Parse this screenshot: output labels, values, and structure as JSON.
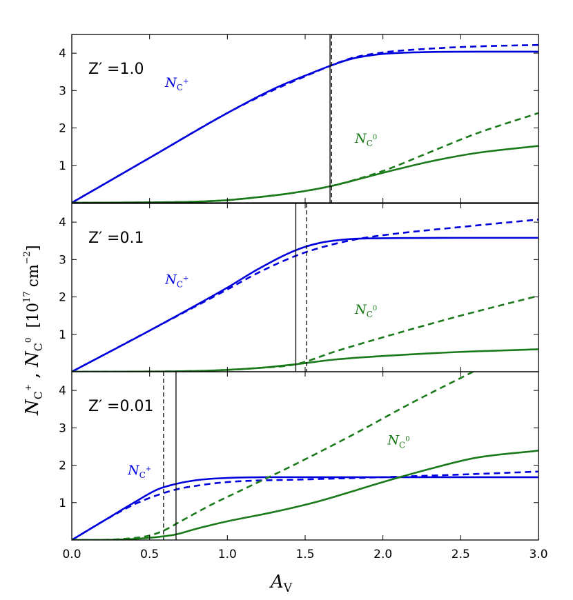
{
  "chart_data": {
    "type": "line",
    "xlabel": "A",
    "xlabel_sub": "V",
    "ylabel": "N",
    "ylabel_sub_1": "C",
    "ylabel_sup_1": "+",
    "ylabel_sep": " , ",
    "ylabel_sub_2": "C",
    "ylabel_sup_2": "0",
    "ylabel_units": "[10",
    "ylabel_units_exp": "17",
    "ylabel_units_rest": "cm",
    "ylabel_units_rest_exp": "−2",
    "ylabel_units_close": "]",
    "xlim": [
      0,
      3
    ],
    "ylim": [
      0,
      4.5
    ],
    "xticks": [
      "0.0",
      "0.5",
      "1.0",
      "1.5",
      "2.0",
      "2.5",
      "3.0"
    ],
    "yticks": [
      "1",
      "2",
      "3",
      "4"
    ],
    "colors": {
      "cplus": "#0000dd",
      "c0": "#1a7a1a",
      "marker": "#000000"
    },
    "panels": [
      {
        "label": "Z′ =1.0",
        "vlines": {
          "solid": 1.66,
          "dashed": 1.67
        },
        "cplus_label": "N",
        "cplus_label_sub": "C",
        "cplus_label_sup": "+",
        "c0_label": "N",
        "c0_label_sub": "C",
        "c0_label_sup": "0",
        "series": [
          {
            "name": "N_C+ solid",
            "color": "#0000dd",
            "style": "solid",
            "x": [
              0,
              0.5,
              1.0,
              1.3,
              1.5,
              1.66,
              1.8,
              2.0,
              2.3,
              2.6,
              3.0
            ],
            "y": [
              0,
              1.2,
              2.4,
              3.05,
              3.4,
              3.66,
              3.85,
              3.98,
              4.03,
              4.04,
              4.04
            ]
          },
          {
            "name": "N_C+ dashed",
            "color": "#0000dd",
            "style": "dashed",
            "x": [
              0,
              0.5,
              1.0,
              1.3,
              1.5,
              1.66,
              1.8,
              2.0,
              2.3,
              2.6,
              3.0
            ],
            "y": [
              0,
              1.2,
              2.4,
              3.02,
              3.38,
              3.66,
              3.87,
              4.02,
              4.12,
              4.18,
              4.22
            ]
          },
          {
            "name": "N_C0 solid",
            "color": "#1a7a1a",
            "style": "solid",
            "x": [
              0,
              0.5,
              0.8,
              1.0,
              1.2,
              1.4,
              1.66,
              2.0,
              2.3,
              2.6,
              3.0
            ],
            "y": [
              0,
              0.01,
              0.03,
              0.07,
              0.15,
              0.25,
              0.44,
              0.8,
              1.1,
              1.33,
              1.52
            ]
          },
          {
            "name": "N_C0 dashed",
            "color": "#1a7a1a",
            "style": "dashed",
            "x": [
              0,
              0.5,
              0.8,
              1.0,
              1.2,
              1.4,
              1.66,
              2.0,
              2.3,
              2.6,
              3.0
            ],
            "y": [
              0,
              0.01,
              0.03,
              0.07,
              0.15,
              0.25,
              0.44,
              0.85,
              1.35,
              1.85,
              2.4
            ]
          }
        ]
      },
      {
        "label": "Z′ =0.1",
        "vlines": {
          "solid": 1.44,
          "dashed": 1.51
        },
        "cplus_label": "N",
        "cplus_label_sub": "C",
        "cplus_label_sup": "+",
        "c0_label": "N",
        "c0_label_sub": "C",
        "c0_label_sup": "0",
        "series": [
          {
            "name": "N_C+ solid",
            "color": "#0000dd",
            "style": "solid",
            "x": [
              0,
              0.5,
              1.0,
              1.2,
              1.44,
              1.6,
              1.8,
              2.0,
              2.5,
              3.0
            ],
            "y": [
              0,
              1.1,
              2.25,
              2.75,
              3.25,
              3.45,
              3.55,
              3.57,
              3.58,
              3.58
            ]
          },
          {
            "name": "N_C+ dashed",
            "color": "#0000dd",
            "style": "dashed",
            "x": [
              0,
              0.5,
              1.0,
              1.2,
              1.44,
              1.6,
              1.8,
              2.0,
              2.5,
              3.0
            ],
            "y": [
              0,
              1.1,
              2.2,
              2.65,
              3.1,
              3.32,
              3.52,
              3.65,
              3.87,
              4.07
            ]
          },
          {
            "name": "N_C0 solid",
            "color": "#1a7a1a",
            "style": "solid",
            "x": [
              0,
              0.5,
              0.8,
              1.0,
              1.2,
              1.44,
              1.7,
              2.0,
              2.5,
              3.0
            ],
            "y": [
              0,
              0.005,
              0.02,
              0.05,
              0.1,
              0.2,
              0.33,
              0.42,
              0.53,
              0.6
            ]
          },
          {
            "name": "N_C0 dashed",
            "color": "#1a7a1a",
            "style": "dashed",
            "x": [
              0,
              0.5,
              0.8,
              1.0,
              1.2,
              1.44,
              1.7,
              2.0,
              2.5,
              3.0
            ],
            "y": [
              0,
              0.005,
              0.02,
              0.05,
              0.1,
              0.2,
              0.55,
              0.92,
              1.5,
              2.03
            ]
          }
        ]
      },
      {
        "label": "Z′ =0.01",
        "vlines": {
          "solid": 0.67,
          "dashed": 0.59
        },
        "cplus_label": "N",
        "cplus_label_sub": "C",
        "cplus_label_sup": "+",
        "c0_label": "N",
        "c0_label_sub": "C",
        "c0_label_sup": "0",
        "series": [
          {
            "name": "N_C+ solid",
            "color": "#0000dd",
            "style": "solid",
            "x": [
              0,
              0.2,
              0.4,
              0.55,
              0.67,
              0.8,
              1.0,
              1.5,
              2.0,
              2.5,
              3.0
            ],
            "y": [
              0,
              0.5,
              1.0,
              1.35,
              1.5,
              1.6,
              1.66,
              1.68,
              1.68,
              1.68,
              1.68
            ]
          },
          {
            "name": "N_C+ dashed",
            "color": "#0000dd",
            "style": "dashed",
            "x": [
              0,
              0.2,
              0.4,
              0.55,
              0.67,
              0.8,
              1.0,
              1.5,
              2.0,
              2.5,
              3.0
            ],
            "y": [
              0,
              0.5,
              0.95,
              1.2,
              1.35,
              1.45,
              1.55,
              1.62,
              1.68,
              1.75,
              1.83
            ]
          },
          {
            "name": "N_C0 solid",
            "color": "#1a7a1a",
            "style": "solid",
            "x": [
              0,
              0.3,
              0.5,
              0.67,
              0.8,
              1.0,
              1.3,
              1.6,
              2.0,
              2.3,
              2.6,
              3.0
            ],
            "y": [
              0,
              0.01,
              0.06,
              0.15,
              0.3,
              0.5,
              0.75,
              1.05,
              1.55,
              1.9,
              2.2,
              2.39
            ]
          },
          {
            "name": "N_C0 dashed",
            "color": "#1a7a1a",
            "style": "dashed",
            "x": [
              0,
              0.3,
              0.5,
              0.59,
              0.7,
              0.9,
              1.1,
              1.4,
              1.8,
              2.2,
              2.58
            ],
            "y": [
              0,
              0.02,
              0.12,
              0.25,
              0.5,
              0.95,
              1.35,
              1.95,
              2.8,
              3.7,
              4.5
            ]
          }
        ]
      }
    ]
  }
}
